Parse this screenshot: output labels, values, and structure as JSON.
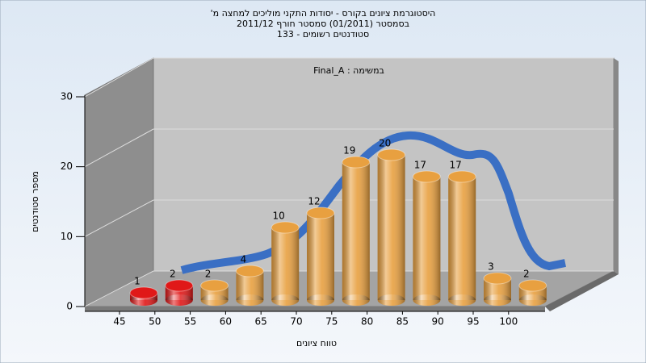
{
  "chart_data": {
    "type": "bar",
    "title": [
      "היסטוגרמת ציונים בקורס - יסודות התקני מוליכים למחצה מ'",
      "בסמסטר  (01/2011)  סמסטר חורף 2011/12",
      "סטודנטים רשומים - 133"
    ],
    "annotation": "במשימה : Final_A",
    "x_label": "טווח ציונים",
    "y_label": "מספר סטודנטים",
    "categories": [
      "45",
      "50",
      "55",
      "60",
      "65",
      "70",
      "75",
      "80",
      "85",
      "90",
      "95",
      "100"
    ],
    "values": [
      1,
      2,
      2,
      4,
      10,
      12,
      19,
      20,
      17,
      17,
      3,
      2
    ],
    "colors": [
      "#e01818",
      "#e01818",
      "#e8a040",
      "#e8a040",
      "#e8a040",
      "#e8a040",
      "#e8a040",
      "#e8a040",
      "#e8a040",
      "#e8a040",
      "#e8a040",
      "#e8a040"
    ],
    "ylim": [
      0,
      30
    ],
    "yticks": [
      0,
      10,
      20,
      30
    ],
    "grid": true
  }
}
